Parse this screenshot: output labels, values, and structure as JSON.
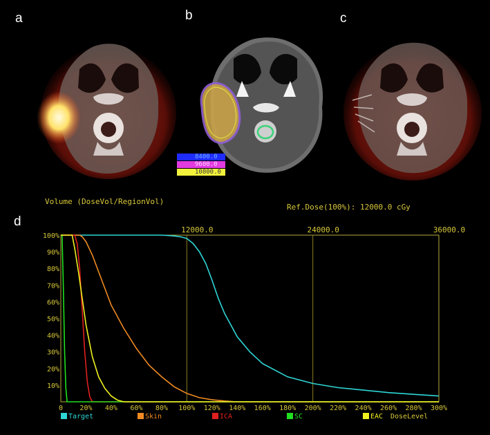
{
  "panels": {
    "a": {
      "label": "a"
    },
    "b": {
      "label": "b"
    },
    "c": {
      "label": "c"
    },
    "d": {
      "label": "d"
    }
  },
  "isodose_legend": [
    {
      "label": "8400.0",
      "color": "#1f2cff"
    },
    {
      "label": "9600.0",
      "color": "#e23be0"
    },
    {
      "label": "10800.0",
      "color": "#f2f23c"
    }
  ],
  "chart_data": {
    "type": "line",
    "ylabel": "Volume (DoseVol/RegionVol)",
    "xlabel": "DoseLevel",
    "ref_dose": "Ref.Dose(100%):  12000.0 cGy",
    "x_unit": "%",
    "xlim": [
      0,
      300
    ],
    "ylim": [
      0,
      100
    ],
    "x_ticks": [
      "0",
      "20%",
      "40%",
      "60%",
      "80%",
      "100%",
      "120%",
      "140%",
      "160%",
      "180%",
      "200%",
      "220%",
      "240%",
      "260%",
      "280%",
      "300%"
    ],
    "y_ticks": [
      "10%",
      "20%",
      "30%",
      "40%",
      "50%",
      "60%",
      "70%",
      "80%",
      "90%",
      "100%"
    ],
    "top_ticks": [
      {
        "label": "12000.0",
        "x": 100
      },
      {
        "label": "24000.0",
        "x": 200
      },
      {
        "label": "36000.0",
        "x": 300
      }
    ],
    "grid": true,
    "series": [
      {
        "name": "Target",
        "color": "#2fd6d6",
        "x": [
          0,
          60,
          80,
          90,
          95,
          100,
          105,
          110,
          115,
          120,
          125,
          130,
          140,
          150,
          160,
          180,
          200,
          220,
          240,
          260,
          280,
          300
        ],
        "y": [
          100,
          100,
          100,
          99.5,
          99,
          98,
          95,
          90,
          83,
          73,
          62,
          53,
          39,
          30,
          23,
          15,
          11,
          8.5,
          7,
          5.5,
          4.5,
          3.5
        ]
      },
      {
        "name": "Skin",
        "color": "#f08a22",
        "x": [
          0,
          15,
          17,
          20,
          25,
          30,
          35,
          40,
          50,
          60,
          70,
          80,
          90,
          100,
          110,
          120,
          130,
          140,
          300
        ],
        "y": [
          100,
          100,
          99,
          96,
          88,
          78,
          68,
          58,
          44,
          32,
          22,
          15,
          9,
          5,
          2.5,
          1.2,
          0.5,
          0,
          0
        ]
      },
      {
        "name": "ICA",
        "color": "#e02020",
        "x": [
          0,
          11,
          13,
          15,
          17,
          19,
          21,
          23,
          25,
          300
        ],
        "y": [
          100,
          100,
          95,
          80,
          55,
          30,
          12,
          3,
          0,
          0
        ]
      },
      {
        "name": "SC",
        "color": "#20e020",
        "x": [
          0,
          1,
          2,
          3,
          4,
          5,
          300
        ],
        "y": [
          100,
          100,
          70,
          30,
          8,
          0,
          0
        ]
      },
      {
        "name": "EAC",
        "color": "#f0f020",
        "x": [
          0,
          9,
          11,
          14,
          17,
          20,
          25,
          30,
          35,
          40,
          45,
          50,
          300
        ],
        "y": [
          100,
          100,
          92,
          78,
          62,
          46,
          27,
          15,
          8,
          3.5,
          1,
          0,
          0
        ]
      }
    ]
  }
}
